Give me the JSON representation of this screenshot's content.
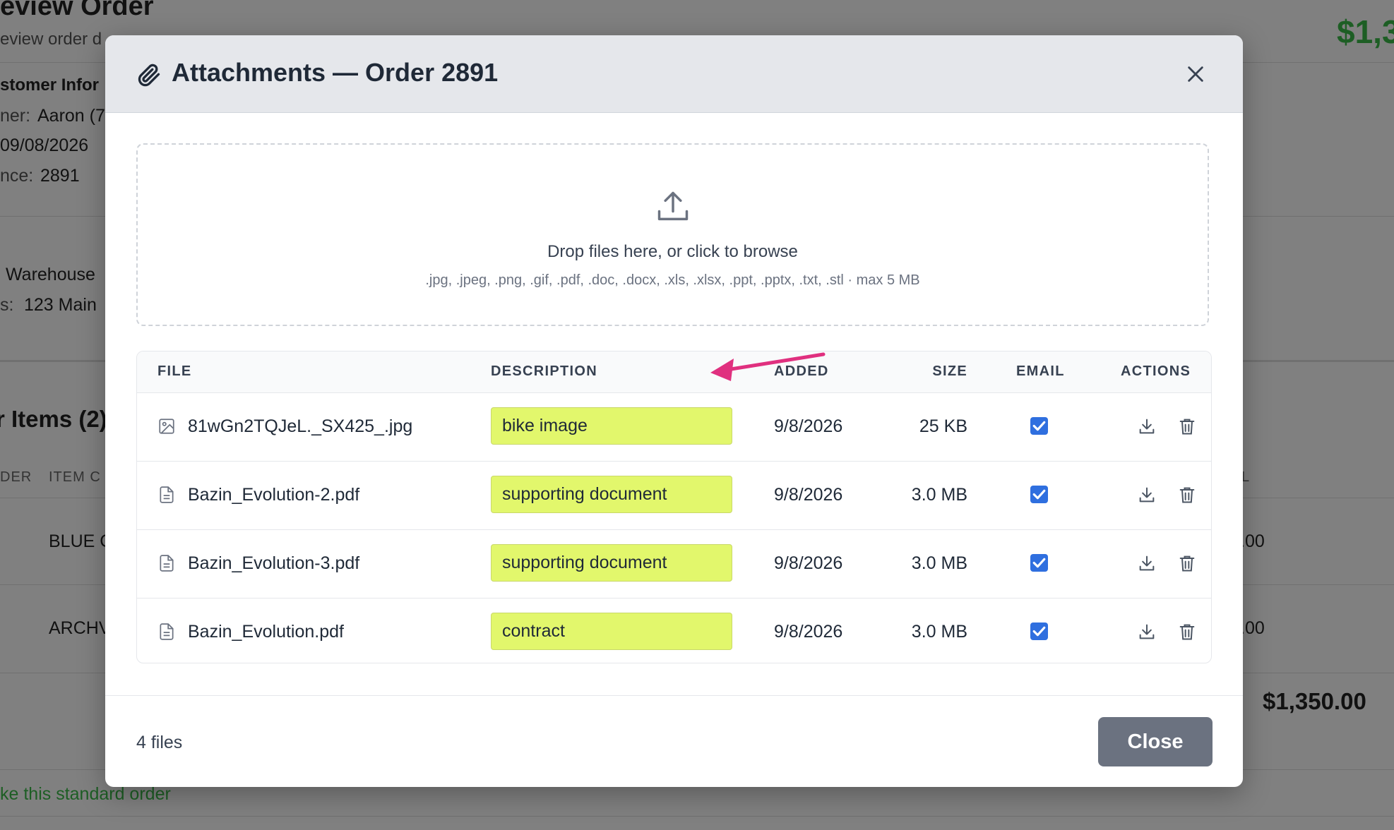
{
  "background": {
    "texts": [
      "eview Order",
      "eview order d",
      "stomer Infor",
      "ner:",
      "Aaron (7",
      "09/08/2026",
      "nce:",
      "2891",
      "Warehouse",
      "s:",
      "123 Main",
      "r Items (2)",
      "DER",
      "ITEM C",
      "BLUE C",
      "ARCHV",
      "$1,3",
      "L",
      ".00",
      ".00",
      "$1,350.00",
      "ke this standard order"
    ]
  },
  "header": {
    "title": "Attachments — Order 2891"
  },
  "dropzone": {
    "prompt": "Drop files here, or click to browse",
    "hint": ".jpg, .jpeg, .png, .gif, .pdf, .doc, .docx, .xls, .xlsx, .ppt, .pptx, .txt, .stl · max 5 MB"
  },
  "table": {
    "columns": [
      "FILE",
      "DESCRIPTION",
      "ADDED",
      "SIZE",
      "EMAIL",
      "ACTIONS"
    ],
    "rows": [
      [
        "81wGn2TQJeL._SX425_.jpg",
        "bike image",
        "9/8/2026",
        "25 KB"
      ],
      [
        "Bazin_Evolution-2.pdf",
        "supporting document",
        "9/8/2026",
        "3.0 MB"
      ],
      [
        "Bazin_Evolution-3.pdf",
        "supporting document",
        "9/8/2026",
        "3.0 MB"
      ],
      [
        "Bazin_Evolution.pdf",
        "contract",
        "9/8/2026",
        "3.0 MB"
      ]
    ]
  },
  "footer": {
    "count": "4 files",
    "button": "Close"
  }
}
